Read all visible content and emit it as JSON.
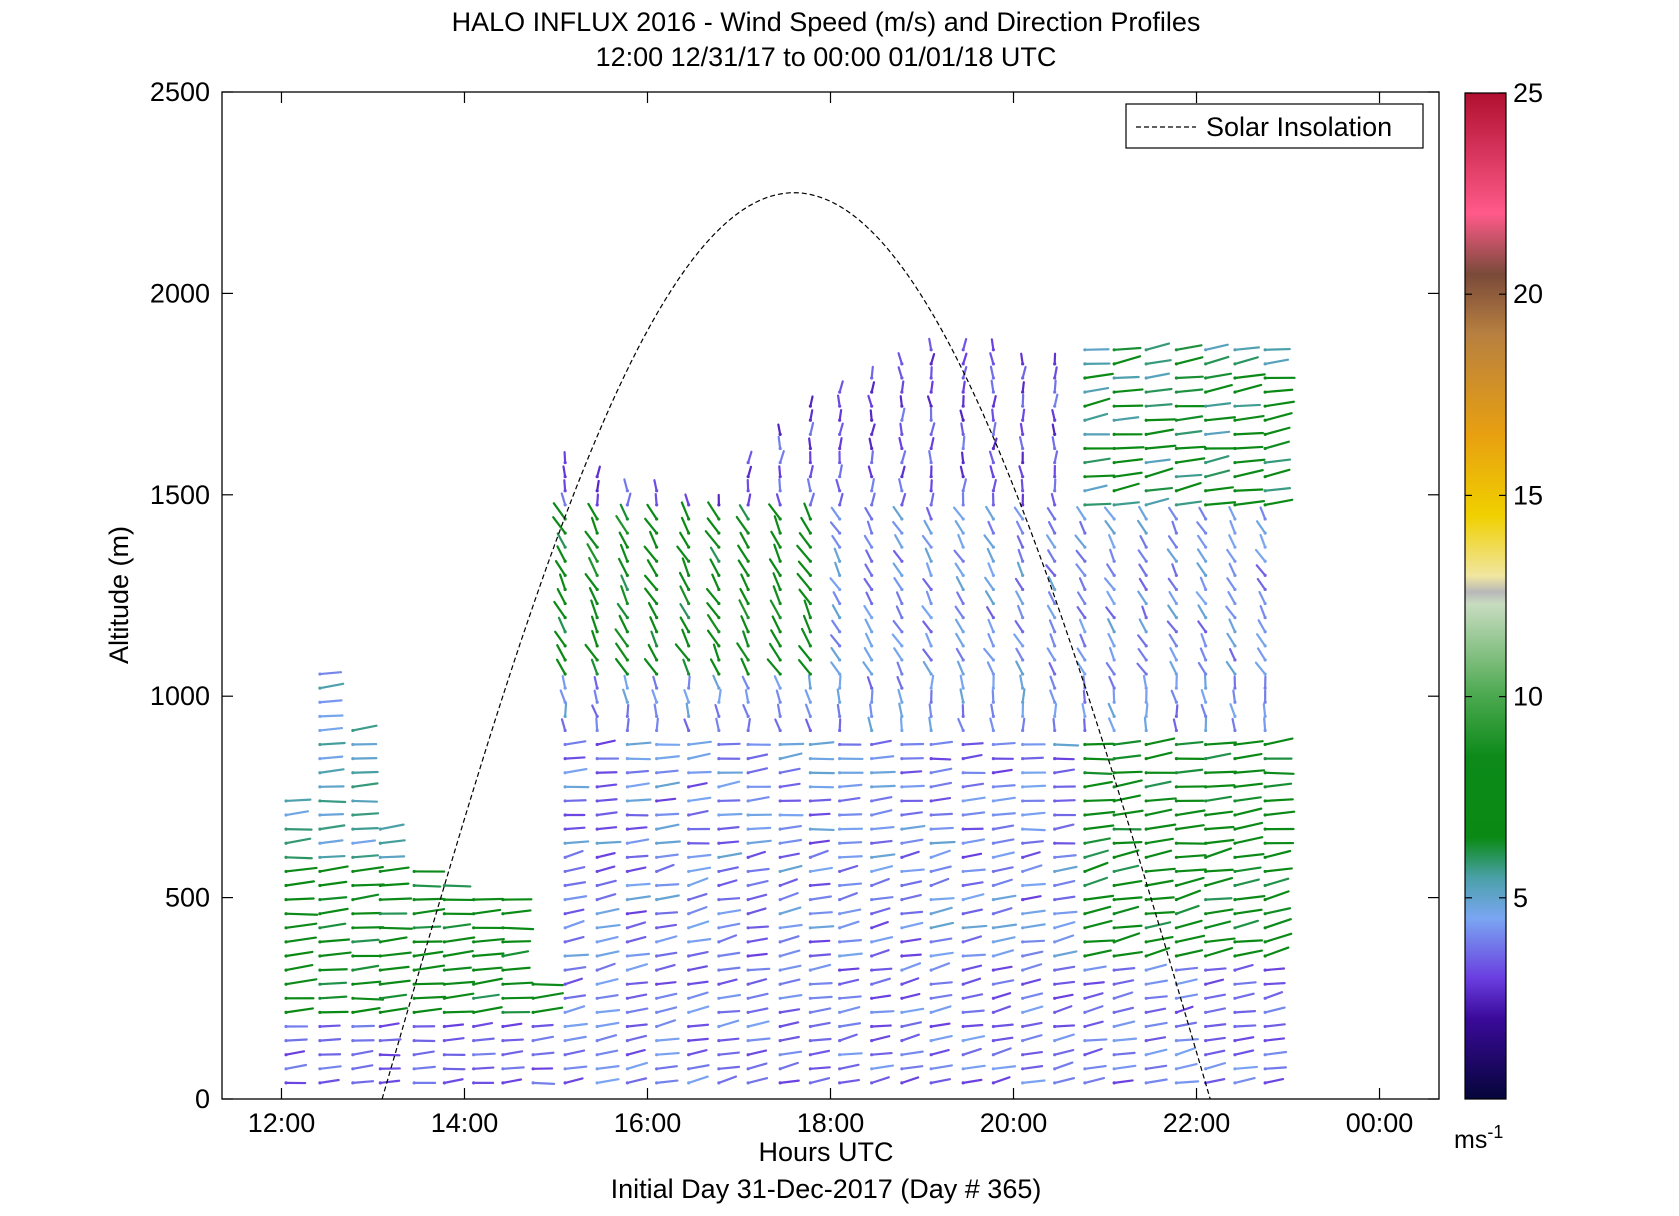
{
  "chart_data": {
    "type": "wind-barb-profile",
    "title": "HALO INFLUX 2016 - Wind Speed (m/s) and Direction Profiles",
    "subtitle": "12:00 12/31/17 to 00:00 01/01/18  UTC",
    "xlabel": "Hours UTC",
    "ylabel": "Altitude (m)",
    "footer": "Initial Day 31-Dec-2017 (Day # 365)",
    "xlim": [
      11.35,
      24.65
    ],
    "ylim": [
      0,
      2500
    ],
    "xticks": [
      12,
      14,
      16,
      18,
      20,
      22,
      24
    ],
    "xtick_labels": [
      "12:00",
      "14:00",
      "16:00",
      "18:00",
      "20:00",
      "22:00",
      "00:00"
    ],
    "yticks": [
      0,
      500,
      1000,
      1500,
      2000,
      2500
    ],
    "ytick_labels": [
      "0",
      "500",
      "1000",
      "1500",
      "2000",
      "2500"
    ],
    "legend": {
      "label": "Solar Insolation",
      "placement": "top-right",
      "style": "dashed"
    },
    "colorbar": {
      "min": 0,
      "max": 25,
      "ticks": [
        5,
        10,
        15,
        20,
        25
      ],
      "tick_labels": [
        "5",
        "10",
        "15",
        "20",
        "25"
      ],
      "unit_label": "ms",
      "unit_exponent": "-1",
      "stops": [
        {
          "v": 0,
          "c": "#05053a"
        },
        {
          "v": 2,
          "c": "#3a0a9a"
        },
        {
          "v": 3,
          "c": "#6a3ee0"
        },
        {
          "v": 4.5,
          "c": "#7aa6f2"
        },
        {
          "v": 5.5,
          "c": "#4aa0a8"
        },
        {
          "v": 6.5,
          "c": "#0a8a14"
        },
        {
          "v": 8.5,
          "c": "#0d8a1a"
        },
        {
          "v": 10,
          "c": "#4aa84e"
        },
        {
          "v": 12.3,
          "c": "#c8dcc0"
        },
        {
          "v": 12.6,
          "c": "#b8b8b8"
        },
        {
          "v": 13,
          "c": "#f0e6a0"
        },
        {
          "v": 14.5,
          "c": "#f0d000"
        },
        {
          "v": 16.5,
          "c": "#e8a010"
        },
        {
          "v": 19,
          "c": "#b88040"
        },
        {
          "v": 20.5,
          "c": "#7a4a3a"
        },
        {
          "v": 22,
          "c": "#ff5a8a"
        },
        {
          "v": 25,
          "c": "#b01030"
        }
      ]
    },
    "solar_insolation": {
      "sunrise_hour": 13.1,
      "sunset_hour": 22.15,
      "peak_hour": 17.6,
      "peak_altitude": 2250
    },
    "wind_profiles": {
      "times": [
        12.05,
        12.42,
        12.78,
        13.08,
        13.45,
        13.78,
        14.1,
        14.42,
        14.75,
        15.1,
        15.45,
        15.78,
        16.1,
        16.45,
        16.78,
        17.1,
        17.45,
        17.78,
        18.1,
        18.45,
        18.78,
        19.1,
        19.45,
        19.78,
        20.1,
        20.45,
        20.78,
        21.1,
        21.45,
        21.78,
        22.1,
        22.42,
        22.75
      ],
      "max_altitudes": [
        750,
        1060,
        940,
        700,
        580,
        560,
        520,
        500,
        300,
        1580,
        1560,
        1540,
        1520,
        1500,
        1500,
        1580,
        1680,
        1720,
        1760,
        1800,
        1840,
        1860,
        1880,
        1880,
        1840,
        1840,
        1860,
        1880,
        1880,
        1880,
        1860,
        1860,
        1860
      ],
      "altitude_step": 35,
      "arrow_length_per_ms": 4.2
    }
  }
}
